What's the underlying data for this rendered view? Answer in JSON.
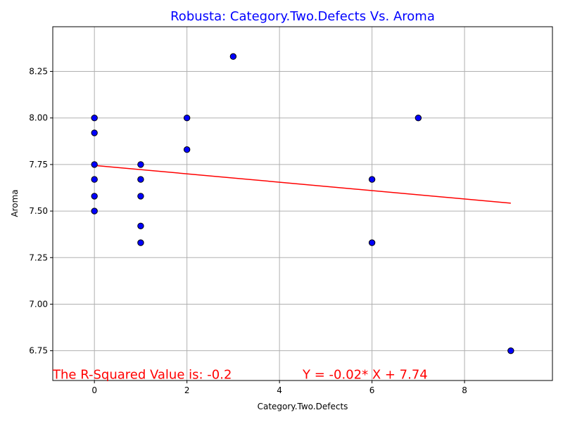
{
  "chart_data": {
    "type": "scatter",
    "title": "Robusta: Category.Two.Defects Vs. Aroma",
    "xlabel": "Category.Two.Defects",
    "ylabel": "Aroma",
    "xlim": [
      -0.9,
      9.9
    ],
    "ylim": [
      6.59,
      8.49
    ],
    "xticks": [
      0,
      2,
      4,
      6,
      8
    ],
    "xtick_labels": [
      "0",
      "2",
      "4",
      "6",
      "8"
    ],
    "yticks": [
      6.75,
      7.0,
      7.25,
      7.5,
      7.75,
      8.0,
      8.25
    ],
    "ytick_labels": [
      "6.75",
      "7.00",
      "7.25",
      "7.50",
      "7.75",
      "8.00",
      "8.25"
    ],
    "grid": true,
    "points": [
      {
        "x": 0,
        "y": 8.0
      },
      {
        "x": 0,
        "y": 7.92
      },
      {
        "x": 0,
        "y": 7.75
      },
      {
        "x": 0,
        "y": 7.67
      },
      {
        "x": 0,
        "y": 7.58
      },
      {
        "x": 0,
        "y": 7.5
      },
      {
        "x": 1,
        "y": 7.75
      },
      {
        "x": 1,
        "y": 7.67
      },
      {
        "x": 1,
        "y": 7.58
      },
      {
        "x": 1,
        "y": 7.42
      },
      {
        "x": 1,
        "y": 7.33
      },
      {
        "x": 2,
        "y": 8.0
      },
      {
        "x": 2,
        "y": 7.83
      },
      {
        "x": 3,
        "y": 8.33
      },
      {
        "x": 6,
        "y": 7.67
      },
      {
        "x": 6,
        "y": 7.33
      },
      {
        "x": 7,
        "y": 8.0
      },
      {
        "x": 9,
        "y": 6.75
      }
    ],
    "regression": {
      "slope": -0.0225,
      "intercept": 7.745,
      "x_start": 0,
      "x_end": 9
    },
    "annotations": {
      "r_squared": "The R-Squared Value is: -0.2",
      "equation": "Y = -0.02* X + 7.74"
    },
    "colors": {
      "title": "#0000ff",
      "point_fill": "#0000ff",
      "point_edge": "#000000",
      "line": "#ff0000",
      "annotation": "#ff0000",
      "grid": "#b0b0b0"
    }
  }
}
